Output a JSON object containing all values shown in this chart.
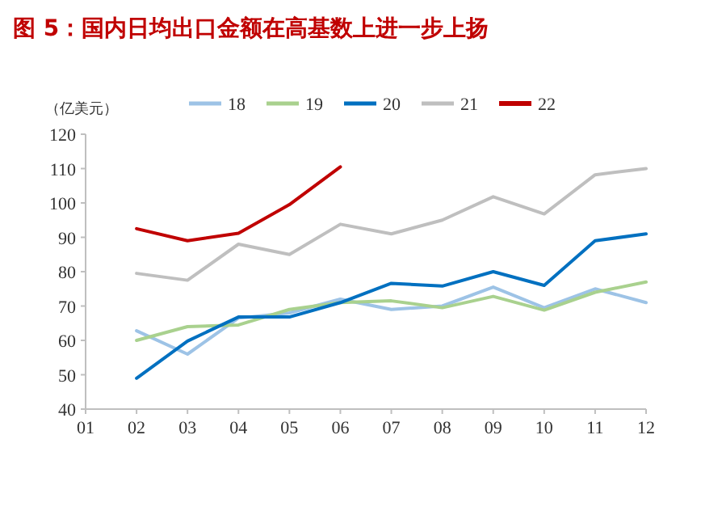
{
  "chart_data": {
    "type": "line",
    "title": "图 5：国内日均出口金额在高基数上进一步上扬",
    "ylabel": "（亿美元）",
    "categories": [
      "01",
      "02",
      "03",
      "04",
      "05",
      "06",
      "07",
      "08",
      "09",
      "10",
      "11",
      "12"
    ],
    "series": [
      {
        "name": "18",
        "color": "#9dc3e6",
        "values": [
          null,
          62.8,
          56,
          66.5,
          68,
          72,
          69,
          70,
          75.5,
          69.5,
          75,
          71
        ]
      },
      {
        "name": "19",
        "color": "#a9d18e",
        "values": [
          null,
          60,
          64,
          64.5,
          69,
          71,
          71.5,
          69.5,
          72.8,
          68.8,
          74,
          77
        ]
      },
      {
        "name": "20",
        "color": "#0070c0",
        "values": [
          null,
          49,
          59.8,
          66.8,
          66.8,
          71,
          76.6,
          75.8,
          80,
          76,
          89,
          91
        ]
      },
      {
        "name": "21",
        "color": "#bfbfbf",
        "values": [
          null,
          79.5,
          77.5,
          88,
          85,
          93.8,
          91,
          95,
          101.8,
          96.8,
          108.2,
          110
        ]
      },
      {
        "name": "22",
        "color": "#c00000",
        "values": [
          null,
          92.5,
          89,
          91.2,
          99.5,
          110.5,
          null,
          null,
          null,
          null,
          null,
          null
        ]
      }
    ],
    "ylim": [
      40,
      120
    ],
    "yticks": [
      40,
      50,
      60,
      70,
      80,
      90,
      100,
      110,
      120
    ],
    "legend": "top",
    "grid": false,
    "marker": "none"
  }
}
